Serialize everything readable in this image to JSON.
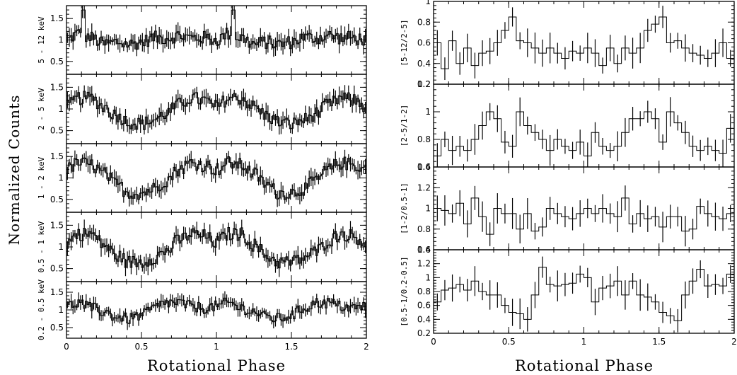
{
  "figure": {
    "left_xlabel": "Rotational Phase",
    "right_xlabel": "Rotational Phase",
    "left_ylabel": "Normalized Counts"
  },
  "chart_data": [
    {
      "type": "line",
      "style": "step-histogram with error bars",
      "panel": "5 - 12 keV",
      "ylabel": "5 - 12 keV",
      "xlim": [
        0,
        2
      ],
      "ylim": [
        0.2,
        1.8
      ],
      "yticks": [
        0.5,
        1,
        1.5
      ],
      "ytick_labels": [
        "0.5",
        "1",
        "1.5"
      ],
      "xticks": [
        0,
        0.5,
        1,
        1.5,
        2
      ],
      "xtick_labels": [],
      "shape": "mostly flat around 1 with sharp spikes near phase 0.1 and 1.1",
      "x": [
        0.0,
        0.0833,
        0.1667,
        0.25,
        0.3333,
        0.4167,
        0.5,
        0.5833,
        0.6667,
        0.75,
        0.8333,
        0.9167,
        1.0,
        1.0833,
        1.1667,
        1.25,
        1.3333,
        1.4167,
        1.5,
        1.5833,
        1.6667,
        1.75,
        1.8333,
        1.9167,
        2.0
      ],
      "y": [
        1.0,
        1.15,
        1.05,
        0.9,
        0.95,
        0.9,
        0.95,
        1.05,
        1.05,
        1.1,
        1.05,
        1.05,
        1.0,
        1.15,
        1.05,
        0.9,
        0.95,
        0.9,
        0.95,
        1.05,
        1.05,
        1.1,
        1.05,
        1.05,
        1.0
      ]
    },
    {
      "type": "line",
      "style": "step-histogram with error bars",
      "panel": "2 - 5 keV",
      "ylabel": "2 - 5 keV",
      "xlim": [
        0,
        2
      ],
      "ylim": [
        0.2,
        1.8
      ],
      "yticks": [
        0.5,
        1,
        1.5
      ],
      "ytick_labels": [
        "0.5",
        "1",
        "1.5"
      ],
      "xticks": [
        0,
        0.5,
        1,
        1.5,
        2
      ],
      "xtick_labels": [],
      "x": [
        0.0,
        0.0833,
        0.1667,
        0.25,
        0.3333,
        0.4167,
        0.5,
        0.5833,
        0.6667,
        0.75,
        0.8333,
        0.9167,
        1.0,
        1.0833,
        1.1667,
        1.25,
        1.3333,
        1.4167,
        1.5,
        1.5833,
        1.6667,
        1.75,
        1.8333,
        1.9167,
        2.0
      ],
      "y": [
        1.05,
        1.25,
        1.25,
        1.05,
        0.85,
        0.7,
        0.65,
        0.75,
        0.9,
        1.1,
        1.25,
        1.2,
        1.05,
        1.25,
        1.25,
        1.05,
        0.85,
        0.7,
        0.65,
        0.75,
        0.9,
        1.1,
        1.25,
        1.2,
        1.05
      ]
    },
    {
      "type": "line",
      "style": "step-histogram with error bars",
      "panel": "1 - 2 keV",
      "ylabel": "1 - 2 keV",
      "xlim": [
        0,
        2
      ],
      "ylim": [
        0.2,
        1.8
      ],
      "yticks": [
        0.5,
        1,
        1.5
      ],
      "ytick_labels": [
        "0.5",
        "1",
        "1.5"
      ],
      "xticks": [
        0,
        0.5,
        1,
        1.5,
        2
      ],
      "xtick_labels": [],
      "x": [
        0.0,
        0.0833,
        0.1667,
        0.25,
        0.3333,
        0.4167,
        0.5,
        0.5833,
        0.6667,
        0.75,
        0.8333,
        0.9167,
        1.0,
        1.0833,
        1.1667,
        1.25,
        1.3333,
        1.4167,
        1.5,
        1.5833,
        1.6667,
        1.75,
        1.8333,
        1.9167,
        2.0
      ],
      "y": [
        1.2,
        1.35,
        1.3,
        1.1,
        0.85,
        0.65,
        0.65,
        0.75,
        0.95,
        1.2,
        1.35,
        1.3,
        1.2,
        1.35,
        1.3,
        1.1,
        0.85,
        0.65,
        0.65,
        0.75,
        0.95,
        1.2,
        1.35,
        1.3,
        1.2
      ]
    },
    {
      "type": "line",
      "style": "step-histogram with error bars",
      "panel": "0.5 - 1 keV",
      "ylabel": "0.5 - 1 keV",
      "xlim": [
        0,
        2
      ],
      "ylim": [
        0.2,
        1.8
      ],
      "yticks": [
        0.5,
        1,
        1.5
      ],
      "ytick_labels": [
        "0.5",
        "1",
        "1.5"
      ],
      "xticks": [
        0,
        0.5,
        1,
        1.5,
        2
      ],
      "xtick_labels": [],
      "x": [
        0.0,
        0.0833,
        0.1667,
        0.25,
        0.3333,
        0.4167,
        0.5,
        0.5833,
        0.6667,
        0.75,
        0.8333,
        0.9167,
        1.0,
        1.0833,
        1.1667,
        1.25,
        1.3333,
        1.4167,
        1.5,
        1.5833,
        1.6667,
        1.75,
        1.8333,
        1.9167,
        2.0
      ],
      "y": [
        1.1,
        1.3,
        1.3,
        1.05,
        0.8,
        0.65,
        0.65,
        0.75,
        0.9,
        1.15,
        1.3,
        1.25,
        1.1,
        1.3,
        1.3,
        1.05,
        0.8,
        0.65,
        0.65,
        0.75,
        0.9,
        1.15,
        1.3,
        1.25,
        1.1
      ]
    },
    {
      "type": "line",
      "style": "step-histogram with error bars",
      "panel": "0.2 - 0.5 keV",
      "ylabel": "0.2 - 0.5 keV",
      "xlim": [
        0,
        2
      ],
      "ylim": [
        0.2,
        1.8
      ],
      "yticks": [
        0.5,
        1,
        1.5
      ],
      "ytick_labels": [
        "0.5",
        "1",
        "1.5"
      ],
      "xticks": [
        0,
        0.5,
        1,
        1.5,
        2
      ],
      "xtick_labels": [
        "0",
        "0.5",
        "1",
        "1.5",
        "2"
      ],
      "x": [
        0.0,
        0.0833,
        0.1667,
        0.25,
        0.3333,
        0.4167,
        0.5,
        0.5833,
        0.6667,
        0.75,
        0.8333,
        0.9167,
        1.0,
        1.0833,
        1.1667,
        1.25,
        1.3333,
        1.4167,
        1.5,
        1.5833,
        1.6667,
        1.75,
        1.8333,
        1.9167,
        2.0
      ],
      "y": [
        1.1,
        1.2,
        1.05,
        0.95,
        0.8,
        0.75,
        0.85,
        1.05,
        1.2,
        1.2,
        1.1,
        1.05,
        1.1,
        1.2,
        1.05,
        0.95,
        0.8,
        0.75,
        0.85,
        1.05,
        1.2,
        1.2,
        1.1,
        1.05,
        1.1
      ]
    },
    {
      "type": "line",
      "style": "step-histogram with error bars",
      "panel": "[5-12/2-5]",
      "ylabel": "[5-12/2-5]",
      "xlim": [
        0,
        2
      ],
      "ylim": [
        0.2,
        1.0
      ],
      "yticks": [
        0.2,
        0.4,
        0.6,
        0.8,
        1.0
      ],
      "ytick_labels": [
        "0.2",
        "0.4",
        "0.6",
        "0.8",
        "1"
      ],
      "xticks": [
        0,
        0.5,
        1,
        1.5,
        2
      ],
      "xtick_labels": [],
      "x": [
        0.025,
        0.075,
        0.125,
        0.175,
        0.225,
        0.275,
        0.325,
        0.375,
        0.425,
        0.475,
        0.525,
        0.575,
        0.625,
        0.675,
        0.725,
        0.775,
        0.825,
        0.875,
        0.925,
        0.975,
        1.025,
        1.075,
        1.125,
        1.175,
        1.225,
        1.275,
        1.325,
        1.375,
        1.425,
        1.475,
        1.525,
        1.575,
        1.625,
        1.675,
        1.725,
        1.775,
        1.825,
        1.875,
        1.925,
        1.975
      ],
      "y": [
        0.6,
        0.35,
        0.62,
        0.4,
        0.55,
        0.38,
        0.5,
        0.52,
        0.6,
        0.72,
        0.85,
        0.62,
        0.6,
        0.55,
        0.5,
        0.55,
        0.5,
        0.45,
        0.52,
        0.5,
        0.55,
        0.5,
        0.38,
        0.55,
        0.4,
        0.55,
        0.5,
        0.55,
        0.72,
        0.78,
        0.85,
        0.6,
        0.62,
        0.55,
        0.5,
        0.48,
        0.45,
        0.5,
        0.6,
        0.45
      ]
    },
    {
      "type": "line",
      "style": "step-histogram with error bars",
      "panel": "[2-5/1-2]",
      "ylabel": "[2-5/1-2]",
      "xlim": [
        0,
        2
      ],
      "ylim": [
        0.6,
        1.2
      ],
      "yticks": [
        0.6,
        0.8,
        1.0,
        1.2
      ],
      "ytick_labels": [
        "0.6",
        "0.8",
        "1",
        "1.2"
      ],
      "xticks": [
        0,
        0.5,
        1,
        1.5,
        2
      ],
      "xtick_labels": [],
      "x": [
        0.025,
        0.075,
        0.125,
        0.175,
        0.225,
        0.275,
        0.325,
        0.375,
        0.425,
        0.475,
        0.525,
        0.575,
        0.625,
        0.675,
        0.725,
        0.775,
        0.825,
        0.875,
        0.925,
        0.975,
        1.025,
        1.075,
        1.125,
        1.175,
        1.225,
        1.275,
        1.325,
        1.375,
        1.425,
        1.475,
        1.525,
        1.575,
        1.625,
        1.675,
        1.725,
        1.775,
        1.825,
        1.875,
        1.925,
        1.975
      ],
      "y": [
        0.68,
        0.8,
        0.72,
        0.75,
        0.72,
        0.8,
        0.9,
        1.0,
        0.95,
        0.78,
        0.75,
        1.0,
        0.9,
        0.85,
        0.8,
        0.72,
        0.8,
        0.75,
        0.72,
        0.78,
        0.68,
        0.85,
        0.75,
        0.72,
        0.75,
        0.85,
        0.95,
        0.95,
        1.0,
        0.95,
        0.78,
        1.0,
        0.92,
        0.85,
        0.75,
        0.72,
        0.75,
        0.72,
        0.7,
        0.88
      ]
    },
    {
      "type": "line",
      "style": "step-histogram with error bars",
      "panel": "[1-2/0.5-1]",
      "ylabel": "[1-2/0.5-1]",
      "xlim": [
        0,
        2
      ],
      "ylim": [
        0.6,
        1.4
      ],
      "yticks": [
        0.6,
        0.8,
        1.0,
        1.2,
        1.4
      ],
      "ytick_labels": [
        "0.6",
        "0.8",
        "1",
        "1.2",
        "1.4"
      ],
      "xticks": [
        0,
        0.5,
        1,
        1.5,
        2
      ],
      "xtick_labels": [],
      "x": [
        0.025,
        0.075,
        0.125,
        0.175,
        0.225,
        0.275,
        0.325,
        0.375,
        0.425,
        0.475,
        0.525,
        0.575,
        0.625,
        0.675,
        0.725,
        0.775,
        0.825,
        0.875,
        0.925,
        0.975,
        1.025,
        1.075,
        1.125,
        1.175,
        1.225,
        1.275,
        1.325,
        1.375,
        1.425,
        1.475,
        1.525,
        1.575,
        1.625,
        1.675,
        1.725,
        1.775,
        1.825,
        1.875,
        1.925,
        1.975
      ],
      "y": [
        1.0,
        0.98,
        0.95,
        1.05,
        0.85,
        1.1,
        0.92,
        0.75,
        1.0,
        0.95,
        0.95,
        0.8,
        0.95,
        0.78,
        0.82,
        1.0,
        0.95,
        0.92,
        0.9,
        0.95,
        1.0,
        0.95,
        1.0,
        0.95,
        0.92,
        1.1,
        0.85,
        0.95,
        0.9,
        0.92,
        0.82,
        0.92,
        0.92,
        0.78,
        0.8,
        1.02,
        0.95,
        0.92,
        0.9,
        0.95
      ]
    },
    {
      "type": "line",
      "style": "step-histogram with error bars",
      "panel": "[0.5-1/0.2-0.5]",
      "ylabel": "[0.5-1/0.2-0.5]",
      "xlim": [
        0,
        2
      ],
      "ylim": [
        0.2,
        1.4
      ],
      "yticks": [
        0.2,
        0.4,
        0.6,
        0.8,
        1.0,
        1.2,
        1.4
      ],
      "ytick_labels": [
        "0.2",
        "0.4",
        "0.6",
        "0.8",
        "1",
        "1.2",
        "1.4"
      ],
      "xticks": [
        0,
        0.5,
        1,
        1.5,
        2
      ],
      "xtick_labels": [
        "0",
        "0.5",
        "1",
        "1.5",
        "2"
      ],
      "x": [
        0.025,
        0.075,
        0.125,
        0.175,
        0.225,
        0.275,
        0.325,
        0.375,
        0.425,
        0.475,
        0.525,
        0.575,
        0.625,
        0.675,
        0.725,
        0.775,
        0.825,
        0.875,
        0.925,
        0.975,
        1.025,
        1.075,
        1.125,
        1.175,
        1.225,
        1.275,
        1.325,
        1.375,
        1.425,
        1.475,
        1.525,
        1.575,
        1.625,
        1.675,
        1.725,
        1.775,
        1.825,
        1.875,
        1.925,
        1.975
      ],
      "y": [
        0.65,
        0.82,
        0.85,
        0.9,
        0.82,
        0.95,
        0.8,
        0.75,
        0.75,
        0.6,
        0.5,
        0.48,
        0.4,
        0.75,
        1.15,
        0.9,
        0.88,
        0.9,
        0.92,
        1.05,
        1.0,
        0.65,
        0.85,
        0.88,
        0.95,
        0.75,
        0.95,
        0.75,
        0.72,
        0.65,
        0.5,
        0.45,
        0.38,
        0.75,
        0.95,
        1.12,
        0.88,
        0.9,
        0.88,
        1.05
      ]
    }
  ]
}
